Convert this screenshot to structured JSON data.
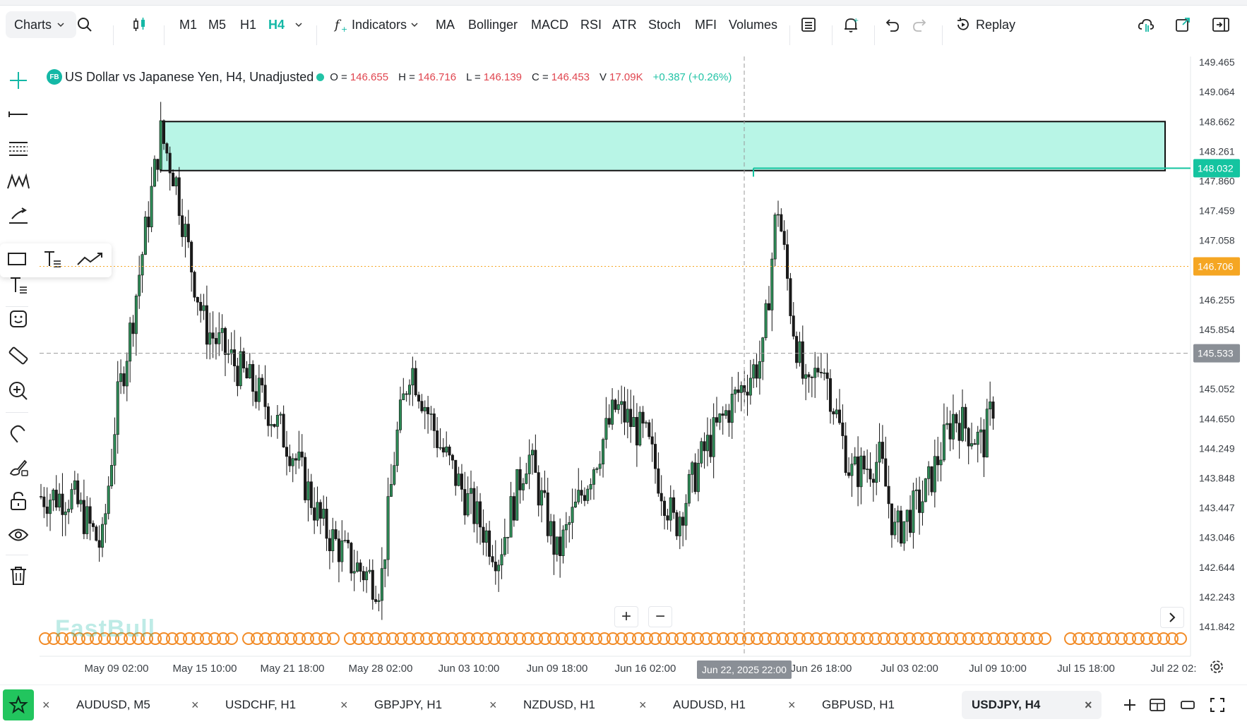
{
  "toolbar": {
    "charts_label": "Charts",
    "timeframes": [
      "M1",
      "M5",
      "H1",
      "H4"
    ],
    "active_timeframe": "H4",
    "indicators_label": "Indicators",
    "indicator_buttons": [
      "MA",
      "Bollinger",
      "MACD",
      "RSI",
      "ATR",
      "Stoch",
      "MFI",
      "Volumes"
    ],
    "replay_label": "Replay"
  },
  "legend": {
    "badge": "FB",
    "symbol_title": "US Dollar vs Japanese Yen, H4, Unadjusted",
    "open_label": "O =",
    "open_value": "146.655",
    "high_label": "H =",
    "high_value": "146.716",
    "low_label": "L =",
    "low_value": "146.139",
    "close_label": "C =",
    "close_value": "146.453",
    "volume_label": "V",
    "volume_value": "17.09K",
    "change": "+0.387 (+0.26%)"
  },
  "price_axis": {
    "ticks": [
      "149.465",
      "149.064",
      "148.662",
      "148.261",
      "147.860",
      "147.459",
      "147.058",
      "146.255",
      "145.854",
      "145.052",
      "144.650",
      "144.249",
      "143.848",
      "143.447",
      "143.046",
      "142.644",
      "142.243",
      "141.842"
    ],
    "marker_green": "148.032",
    "marker_orange": "146.706",
    "marker_gray": "145.533"
  },
  "time_axis": {
    "ticks": [
      "May 09 02:00",
      "May 15 10:00",
      "May 21 18:00",
      "May 28 02:00",
      "Jun 03 10:00",
      "Jun 09 18:00",
      "Jun 16 02:00",
      "Jun 26 18:00",
      "Jul 03 02:00",
      "Jul 09 10:00",
      "Jul 15 18:00",
      "Jul 22 02:"
    ],
    "crosshair_label": "Jun 22, 2025 22:00"
  },
  "watermark": "FastBull",
  "tabs": [
    {
      "label": "AUDUSD, M5",
      "active": false
    },
    {
      "label": "USDCHF, H1",
      "active": false
    },
    {
      "label": "GBPJPY, H1",
      "active": false
    },
    {
      "label": "NZDUSD, H1",
      "active": false
    },
    {
      "label": "AUDUSD, H1",
      "active": false
    },
    {
      "label": "GBPUSD, H1",
      "active": false
    },
    {
      "label": "USDJPY, H4",
      "active": true
    }
  ],
  "colors": {
    "accent": "#14b8a6",
    "candle_up": "#2e8b57",
    "candle_down": "#1a1a1a",
    "zone_fill": "#b8f5e6",
    "marker_green": "#14c4a0",
    "marker_orange": "#f5a623",
    "marker_gray": "#8a8f96",
    "event_orange": "#f28c28"
  },
  "chart_data": {
    "type": "candlestick",
    "symbol": "USDJPY",
    "timeframe": "H4",
    "ylim": [
      141.8,
      149.5
    ],
    "close_path": [
      [
        "2025-05-06",
        143.6
      ],
      [
        "2025-05-08",
        142.9
      ],
      [
        "2025-05-09",
        144.8
      ],
      [
        "2025-05-10",
        145.9
      ],
      [
        "2025-05-12",
        148.5
      ],
      [
        "2025-05-13",
        147.9
      ],
      [
        "2025-05-14",
        146.8
      ],
      [
        "2025-05-15",
        145.9
      ],
      [
        "2025-05-17",
        145.4
      ],
      [
        "2025-05-19",
        144.9
      ],
      [
        "2025-05-21",
        144.2
      ],
      [
        "2025-05-23",
        143.2
      ],
      [
        "2025-05-25",
        142.7
      ],
      [
        "2025-05-27",
        142.4
      ],
      [
        "2025-05-28",
        144.3
      ],
      [
        "2025-05-29",
        145.4
      ],
      [
        "2025-05-31",
        144.3
      ],
      [
        "2025-06-02",
        143.5
      ],
      [
        "2025-06-04",
        142.8
      ],
      [
        "2025-06-06",
        144.2
      ],
      [
        "2025-06-08",
        142.8
      ],
      [
        "2025-06-10",
        143.8
      ],
      [
        "2025-06-12",
        144.8
      ],
      [
        "2025-06-14",
        144.4
      ],
      [
        "2025-06-16",
        143.2
      ],
      [
        "2025-06-18",
        144.2
      ],
      [
        "2025-06-20",
        144.9
      ],
      [
        "2025-06-22",
        145.5
      ],
      [
        "2025-06-23",
        147.6
      ],
      [
        "2025-06-24",
        146.0
      ],
      [
        "2025-06-25",
        144.9
      ],
      [
        "2025-06-26",
        145.5
      ],
      [
        "2025-06-28",
        143.9
      ],
      [
        "2025-06-30",
        144.1
      ],
      [
        "2025-07-01",
        143.1
      ],
      [
        "2025-07-03",
        143.6
      ],
      [
        "2025-07-05",
        144.7
      ],
      [
        "2025-07-07",
        144.3
      ],
      [
        "2025-07-09",
        145.9
      ],
      [
        "2025-07-10",
        146.7
      ]
    ],
    "supply_zone": {
      "from": "2025-05-12",
      "to": "2025-07-22",
      "low": 148.0,
      "high": 148.662
    },
    "horizontal_line": 148.032,
    "current_price_line": 146.706,
    "crosshair_price": 145.533,
    "crosshair_time": "Jun 22, 2025 22:00"
  }
}
